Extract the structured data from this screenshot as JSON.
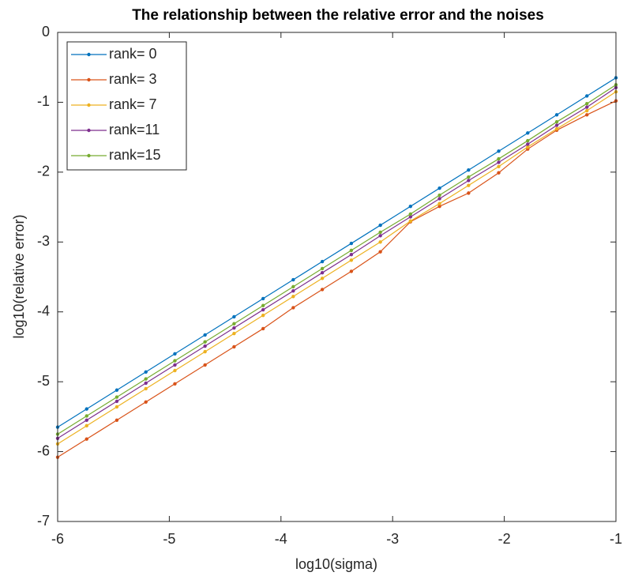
{
  "chart_data": {
    "type": "line",
    "title": "The relationship between the relative error and the noises",
    "xlabel": "log10(sigma)",
    "ylabel": "log10(relative error)",
    "x": [
      -6,
      -5.74,
      -5.47,
      -5.21,
      -4.95,
      -4.68,
      -4.42,
      -4.16,
      -3.89,
      -3.63,
      -3.37,
      -3.11,
      -2.84,
      -2.58,
      -2.32,
      -2.05,
      -1.79,
      -1.53,
      -1.26,
      -1
    ],
    "series": [
      {
        "name": "rank= 0",
        "color": "#0072bd",
        "values": [
          -5.65,
          -5.39,
          -5.12,
          -4.86,
          -4.6,
          -4.33,
          -4.07,
          -3.81,
          -3.54,
          -3.28,
          -3.02,
          -2.76,
          -2.49,
          -2.23,
          -1.97,
          -1.7,
          -1.44,
          -1.18,
          -0.91,
          -0.65
        ]
      },
      {
        "name": "rank= 3",
        "color": "#d95319",
        "values": [
          -6.08,
          -5.82,
          -5.55,
          -5.29,
          -5.03,
          -4.76,
          -4.5,
          -4.24,
          -3.94,
          -3.68,
          -3.42,
          -3.14,
          -2.71,
          -2.49,
          -2.3,
          -2.01,
          -1.67,
          -1.4,
          -1.18,
          -0.98
        ]
      },
      {
        "name": "rank= 7",
        "color": "#edb120",
        "values": [
          -5.89,
          -5.63,
          -5.36,
          -5.1,
          -4.84,
          -4.57,
          -4.31,
          -4.05,
          -3.78,
          -3.52,
          -3.26,
          -3.0,
          -2.7,
          -2.45,
          -2.19,
          -1.92,
          -1.64,
          -1.38,
          -1.12,
          -0.85
        ]
      },
      {
        "name": "rank=11",
        "color": "#7e2f8e",
        "values": [
          -5.81,
          -5.55,
          -5.28,
          -5.02,
          -4.76,
          -4.49,
          -4.23,
          -3.97,
          -3.7,
          -3.44,
          -3.18,
          -2.91,
          -2.64,
          -2.38,
          -2.12,
          -1.86,
          -1.6,
          -1.33,
          -1.07,
          -0.79
        ]
      },
      {
        "name": "rank=15",
        "color": "#77ac30",
        "values": [
          -5.75,
          -5.49,
          -5.22,
          -4.96,
          -4.7,
          -4.43,
          -4.17,
          -3.91,
          -3.64,
          -3.38,
          -3.12,
          -2.86,
          -2.6,
          -2.33,
          -2.07,
          -1.81,
          -1.55,
          -1.28,
          -1.02,
          -0.75
        ]
      }
    ],
    "xlim": [
      -6,
      -1
    ],
    "xticks": [
      -6,
      -5,
      -4,
      -3,
      -2,
      -1
    ],
    "ylim": [
      -7,
      0
    ],
    "yticks": [
      -7,
      -6,
      -5,
      -4,
      -3,
      -2,
      -1,
      0
    ],
    "grid": false,
    "legend_position": "top-left"
  }
}
